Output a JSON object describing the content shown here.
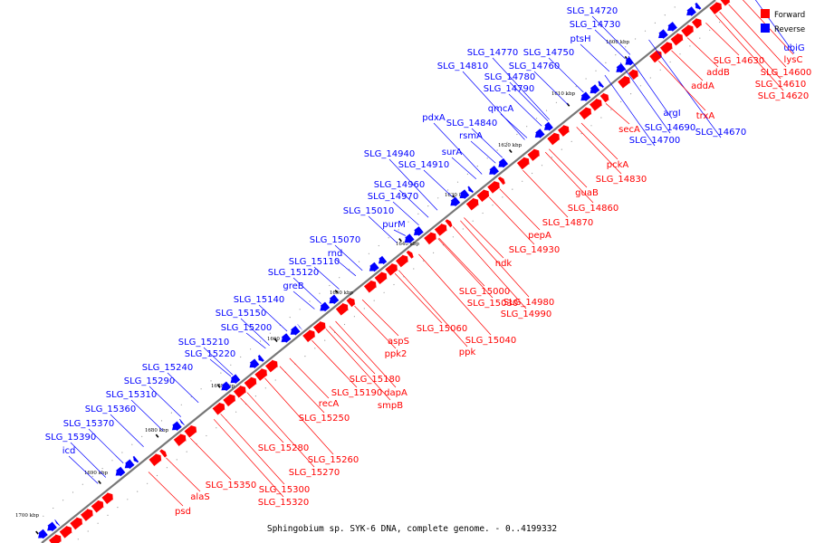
{
  "caption": "Sphingobium sp. SYK-6 DNA, complete genome. - 0..4199332",
  "colors": {
    "forward": "#ff0000",
    "reverse": "#0000ff",
    "backbone": "#777777"
  },
  "legend": [
    {
      "name": "Forward",
      "color": "#ff0000"
    },
    {
      "name": "Reverse",
      "color": "#0000ff"
    }
  ],
  "ticks": [
    "1600 kbp",
    "1610 kbp",
    "1620 kbp",
    "1630 kbp",
    "1640 kbp",
    "1650 kbp",
    "1660 kbp",
    "1670 kbp",
    "1680 kbp",
    "1690 kbp",
    "1700 kbp"
  ],
  "reverse_genes": [
    "ubiG",
    "SLG_14670",
    "argI",
    "SLG_14690",
    "SLG_14700",
    "SLG_14720",
    "SLG_14730",
    "ptsH",
    "SLG_14750",
    "SLG_14760",
    "SLG_14770",
    "SLG_14780",
    "SLG_14790",
    "SLG_14810",
    "qmcA",
    "SLG_14840",
    "pdxA",
    "rsmA",
    "surA",
    "SLG_14910",
    "SLG_14940",
    "SLG_14960",
    "SLG_14970",
    "SLG_15010",
    "purM",
    "SLG_15070",
    "rnd",
    "SLG_15110",
    "SLG_15120",
    "greB",
    "SLG_15140",
    "SLG_15150",
    "SLG_15200",
    "SLG_15210",
    "SLG_15220",
    "SLG_15240",
    "SLG_15290",
    "SLG_15310",
    "SLG_15360",
    "SLG_15370",
    "SLG_15390",
    "icd"
  ],
  "forward_genes": [
    "lysC",
    "SLG_14600",
    "SLG_14610",
    "SLG_14620",
    "SLG_14630",
    "addB",
    "addA",
    "trxA",
    "secA",
    "pckA",
    "SLG_14830",
    "guaB",
    "SLG_14860",
    "SLG_14870",
    "pepA",
    "SLG_14930",
    "ndk",
    "SLG_15000",
    "SLG_14980",
    "SLG_14990",
    "SLG_15030",
    "SLG_15040",
    "SLG_15060",
    "ppk",
    "aspS",
    "ppk2",
    "SLG_15180",
    "SLG_15190",
    "dapA",
    "smpB",
    "recA",
    "SLG_15250",
    "SLG_15260",
    "SLG_15270",
    "SLG_15280",
    "SLG_15300",
    "SLG_15320",
    "SLG_15350",
    "alaS",
    "psd"
  ]
}
